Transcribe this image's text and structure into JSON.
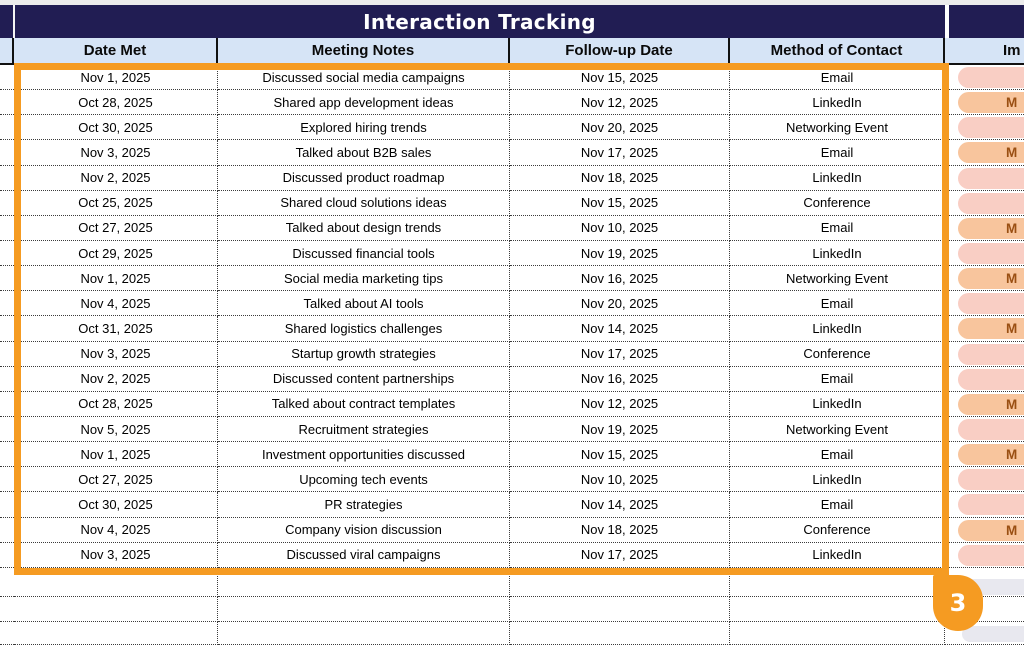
{
  "title_bar": {
    "title": "Interaction Tracking"
  },
  "header": {
    "date_met": "Date Met",
    "meeting_notes": "Meeting Notes",
    "follow_up_date": "Follow-up Date",
    "method_of_contact": "Method of Contact",
    "importance_visible": "Im"
  },
  "rows": [
    {
      "date_met": "Nov 1, 2025",
      "meeting_notes": "Discussed social media campaigns",
      "follow_up_date": "Nov 15, 2025",
      "method_of_contact": "Email",
      "importance": {
        "visible_text": "",
        "variant": "light"
      }
    },
    {
      "date_met": "Oct 28, 2025",
      "meeting_notes": "Shared app development ideas",
      "follow_up_date": "Nov 12, 2025",
      "method_of_contact": "LinkedIn",
      "importance": {
        "visible_text": "M",
        "variant": "medium"
      }
    },
    {
      "date_met": "Oct 30, 2025",
      "meeting_notes": "Explored hiring trends",
      "follow_up_date": "Nov 20, 2025",
      "method_of_contact": "Networking Event",
      "importance": {
        "visible_text": "",
        "variant": "light"
      }
    },
    {
      "date_met": "Nov 3, 2025",
      "meeting_notes": "Talked about B2B sales",
      "follow_up_date": "Nov 17, 2025",
      "method_of_contact": "Email",
      "importance": {
        "visible_text": "M",
        "variant": "medium"
      }
    },
    {
      "date_met": "Nov 2, 2025",
      "meeting_notes": "Discussed product roadmap",
      "follow_up_date": "Nov 18, 2025",
      "method_of_contact": "LinkedIn",
      "importance": {
        "visible_text": "",
        "variant": "light"
      }
    },
    {
      "date_met": "Oct 25, 2025",
      "meeting_notes": "Shared cloud solutions ideas",
      "follow_up_date": "Nov 15, 2025",
      "method_of_contact": "Conference",
      "importance": {
        "visible_text": "",
        "variant": "light"
      }
    },
    {
      "date_met": "Oct 27, 2025",
      "meeting_notes": "Talked about design trends",
      "follow_up_date": "Nov 10, 2025",
      "method_of_contact": "Email",
      "importance": {
        "visible_text": "M",
        "variant": "medium"
      }
    },
    {
      "date_met": "Oct 29, 2025",
      "meeting_notes": "Discussed financial tools",
      "follow_up_date": "Nov 19, 2025",
      "method_of_contact": "LinkedIn",
      "importance": {
        "visible_text": "",
        "variant": "light"
      }
    },
    {
      "date_met": "Nov 1, 2025",
      "meeting_notes": "Social media marketing tips",
      "follow_up_date": "Nov 16, 2025",
      "method_of_contact": "Networking Event",
      "importance": {
        "visible_text": "M",
        "variant": "medium"
      }
    },
    {
      "date_met": "Nov 4, 2025",
      "meeting_notes": "Talked about AI tools",
      "follow_up_date": "Nov 20, 2025",
      "method_of_contact": "Email",
      "importance": {
        "visible_text": "",
        "variant": "light"
      }
    },
    {
      "date_met": "Oct 31, 2025",
      "meeting_notes": "Shared logistics challenges",
      "follow_up_date": "Nov 14, 2025",
      "method_of_contact": "LinkedIn",
      "importance": {
        "visible_text": "M",
        "variant": "medium"
      }
    },
    {
      "date_met": "Nov 3, 2025",
      "meeting_notes": "Startup growth strategies",
      "follow_up_date": "Nov 17, 2025",
      "method_of_contact": "Conference",
      "importance": {
        "visible_text": "",
        "variant": "light"
      }
    },
    {
      "date_met": "Nov 2, 2025",
      "meeting_notes": "Discussed content partnerships",
      "follow_up_date": "Nov 16, 2025",
      "method_of_contact": "Email",
      "importance": {
        "visible_text": "",
        "variant": "light"
      }
    },
    {
      "date_met": "Oct 28, 2025",
      "meeting_notes": "Talked about contract templates",
      "follow_up_date": "Nov 12, 2025",
      "method_of_contact": "LinkedIn",
      "importance": {
        "visible_text": "M",
        "variant": "medium"
      }
    },
    {
      "date_met": "Nov 5, 2025",
      "meeting_notes": "Recruitment strategies",
      "follow_up_date": "Nov 19, 2025",
      "method_of_contact": "Networking Event",
      "importance": {
        "visible_text": "",
        "variant": "light"
      }
    },
    {
      "date_met": "Nov 1, 2025",
      "meeting_notes": "Investment opportunities discussed",
      "follow_up_date": "Nov 15, 2025",
      "method_of_contact": "Email",
      "importance": {
        "visible_text": "M",
        "variant": "medium"
      }
    },
    {
      "date_met": "Oct 27, 2025",
      "meeting_notes": "Upcoming tech events",
      "follow_up_date": "Nov 10, 2025",
      "method_of_contact": "LinkedIn",
      "importance": {
        "visible_text": "",
        "variant": "light"
      }
    },
    {
      "date_met": "Oct 30, 2025",
      "meeting_notes": "PR strategies",
      "follow_up_date": "Nov 14, 2025",
      "method_of_contact": "Email",
      "importance": {
        "visible_text": "",
        "variant": "light"
      }
    },
    {
      "date_met": "Nov 4, 2025",
      "meeting_notes": "Company vision discussion",
      "follow_up_date": "Nov 18, 2025",
      "method_of_contact": "Conference",
      "importance": {
        "visible_text": "M",
        "variant": "medium"
      }
    },
    {
      "date_met": "Nov 3, 2025",
      "meeting_notes": "Discussed viral campaigns",
      "follow_up_date": "Nov 17, 2025",
      "method_of_contact": "LinkedIn",
      "importance": {
        "visible_text": "",
        "variant": "light"
      }
    }
  ],
  "selection": {
    "step_badge_label": "3",
    "border_color": "#f59b22"
  },
  "colors": {
    "navy_header": "#211d53",
    "column_header_blue": "#d6e4f6",
    "selection_orange": "#f59b22",
    "pill_light": "#f9cec4",
    "pill_medium": "#f8c59d",
    "pill_medium_text": "#9a4f12",
    "pill_empty_gray": "#e8e8ef"
  }
}
